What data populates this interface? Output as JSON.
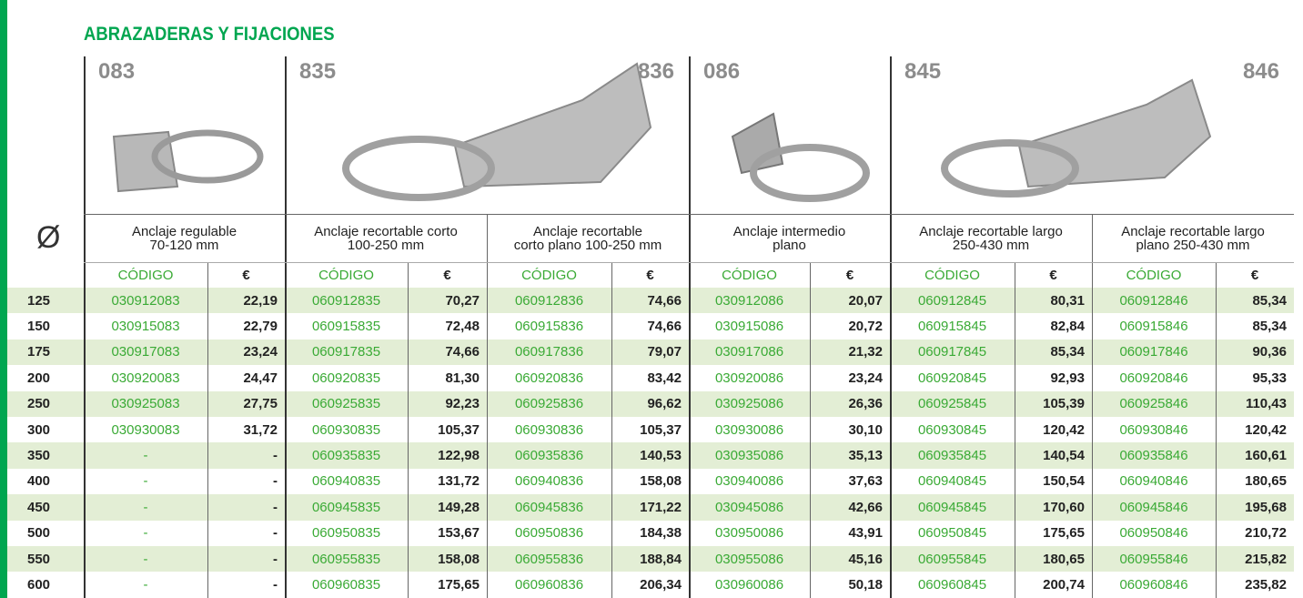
{
  "header": {
    "title": "ABRAZADERAS Y FIJACIONES"
  },
  "groups": [
    {
      "labels": [
        "083"
      ]
    },
    {
      "labels": [
        "835",
        "836"
      ]
    },
    {
      "labels": [
        "086"
      ]
    },
    {
      "labels": [
        "845",
        "846"
      ]
    }
  ],
  "diameter_symbol": "Ø",
  "columns": [
    {
      "description": "Anclaje regulable\n70-120 mm",
      "code_header": "CÓDIGO",
      "price_header": "€"
    },
    {
      "description": "Anclaje recortable corto\n100-250 mm",
      "code_header": "CÓDIGO",
      "price_header": "€"
    },
    {
      "description": "Anclaje recortable\ncorto plano 100-250 mm",
      "code_header": "CÓDIGO",
      "price_header": "€"
    },
    {
      "description": "Anclaje intermedio\nplano",
      "code_header": "CÓDIGO",
      "price_header": "€"
    },
    {
      "description": "Anclaje recortable largo\n250-430 mm",
      "code_header": "CÓDIGO",
      "price_header": "€"
    },
    {
      "description": "Anclaje recortable largo\nplano 250-430 mm",
      "code_header": "CÓDIGO",
      "price_header": "€"
    }
  ],
  "rows": [
    {
      "diameter": "125",
      "cells": [
        [
          "030912083",
          "22,19"
        ],
        [
          "060912835",
          "70,27"
        ],
        [
          "060912836",
          "74,66"
        ],
        [
          "030912086",
          "20,07"
        ],
        [
          "060912845",
          "80,31"
        ],
        [
          "060912846",
          "85,34"
        ]
      ]
    },
    {
      "diameter": "150",
      "cells": [
        [
          "030915083",
          "22,79"
        ],
        [
          "060915835",
          "72,48"
        ],
        [
          "060915836",
          "74,66"
        ],
        [
          "030915086",
          "20,72"
        ],
        [
          "060915845",
          "82,84"
        ],
        [
          "060915846",
          "85,34"
        ]
      ]
    },
    {
      "diameter": "175",
      "cells": [
        [
          "030917083",
          "23,24"
        ],
        [
          "060917835",
          "74,66"
        ],
        [
          "060917836",
          "79,07"
        ],
        [
          "030917086",
          "21,32"
        ],
        [
          "060917845",
          "85,34"
        ],
        [
          "060917846",
          "90,36"
        ]
      ]
    },
    {
      "diameter": "200",
      "cells": [
        [
          "030920083",
          "24,47"
        ],
        [
          "060920835",
          "81,30"
        ],
        [
          "060920836",
          "83,42"
        ],
        [
          "030920086",
          "23,24"
        ],
        [
          "060920845",
          "92,93"
        ],
        [
          "060920846",
          "95,33"
        ]
      ]
    },
    {
      "diameter": "250",
      "cells": [
        [
          "030925083",
          "27,75"
        ],
        [
          "060925835",
          "92,23"
        ],
        [
          "060925836",
          "96,62"
        ],
        [
          "030925086",
          "26,36"
        ],
        [
          "060925845",
          "105,39"
        ],
        [
          "060925846",
          "110,43"
        ]
      ]
    },
    {
      "diameter": "300",
      "cells": [
        [
          "030930083",
          "31,72"
        ],
        [
          "060930835",
          "105,37"
        ],
        [
          "060930836",
          "105,37"
        ],
        [
          "030930086",
          "30,10"
        ],
        [
          "060930845",
          "120,42"
        ],
        [
          "060930846",
          "120,42"
        ]
      ]
    },
    {
      "diameter": "350",
      "cells": [
        [
          "-",
          "-"
        ],
        [
          "060935835",
          "122,98"
        ],
        [
          "060935836",
          "140,53"
        ],
        [
          "030935086",
          "35,13"
        ],
        [
          "060935845",
          "140,54"
        ],
        [
          "060935846",
          "160,61"
        ]
      ]
    },
    {
      "diameter": "400",
      "cells": [
        [
          "-",
          "-"
        ],
        [
          "060940835",
          "131,72"
        ],
        [
          "060940836",
          "158,08"
        ],
        [
          "030940086",
          "37,63"
        ],
        [
          "060940845",
          "150,54"
        ],
        [
          "060940846",
          "180,65"
        ]
      ]
    },
    {
      "diameter": "450",
      "cells": [
        [
          "-",
          "-"
        ],
        [
          "060945835",
          "149,28"
        ],
        [
          "060945836",
          "171,22"
        ],
        [
          "030945086",
          "42,66"
        ],
        [
          "060945845",
          "170,60"
        ],
        [
          "060945846",
          "195,68"
        ]
      ]
    },
    {
      "diameter": "500",
      "cells": [
        [
          "-",
          "-"
        ],
        [
          "060950835",
          "153,67"
        ],
        [
          "060950836",
          "184,38"
        ],
        [
          "030950086",
          "43,91"
        ],
        [
          "060950845",
          "175,65"
        ],
        [
          "060950846",
          "210,72"
        ]
      ]
    },
    {
      "diameter": "550",
      "cells": [
        [
          "-",
          "-"
        ],
        [
          "060955835",
          "158,08"
        ],
        [
          "060955836",
          "188,84"
        ],
        [
          "030955086",
          "45,16"
        ],
        [
          "060955845",
          "180,65"
        ],
        [
          "060955846",
          "215,82"
        ]
      ]
    },
    {
      "diameter": "600",
      "cells": [
        [
          "-",
          "-"
        ],
        [
          "060960835",
          "175,65"
        ],
        [
          "060960836",
          "206,34"
        ],
        [
          "030960086",
          "50,18"
        ],
        [
          "060960845",
          "200,74"
        ],
        [
          "060960846",
          "235,82"
        ]
      ]
    }
  ]
}
